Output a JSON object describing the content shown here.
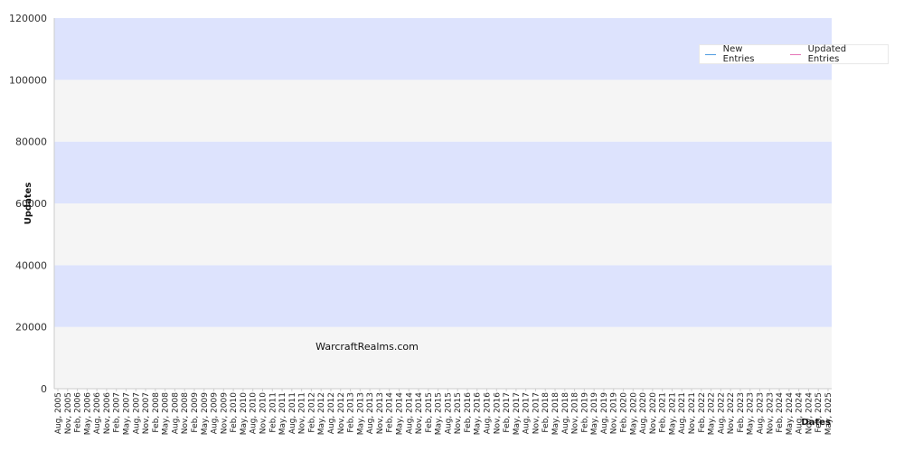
{
  "chart_data": {
    "type": "line",
    "title": "",
    "xlabel": "Dates",
    "ylabel": "Updates",
    "ylim": [
      0,
      120000
    ],
    "yticks": [
      0,
      20000,
      40000,
      60000,
      80000,
      100000,
      120000
    ],
    "grid": "horizontal alternating bands",
    "legend_position": "top-right",
    "watermark": "WarcraftRealms.com",
    "x_categories": [
      "Aug, 2005",
      "Nov, 2005",
      "Feb, 2006",
      "May, 2006",
      "Aug, 2006",
      "Nov, 2006",
      "Feb, 2007",
      "May, 2007",
      "Aug, 2007",
      "Nov, 2007",
      "Feb, 2008",
      "May, 2008",
      "Aug, 2008",
      "Nov, 2008",
      "Feb, 2009",
      "May, 2009",
      "Aug, 2009",
      "Nov, 2009",
      "Feb, 2010",
      "May, 2010",
      "Aug, 2010",
      "Nov, 2010",
      "Feb, 2011",
      "May, 2011",
      "Aug, 2011",
      "Nov, 2011",
      "Feb, 2012",
      "May, 2012",
      "Aug, 2012",
      "Nov, 2012",
      "Feb, 2013",
      "May, 2013",
      "Aug, 2013",
      "Nov, 2013",
      "Feb, 2014",
      "May, 2014",
      "Aug, 2014",
      "Nov, 2014",
      "Feb, 2015",
      "May, 2015",
      "Aug, 2015",
      "Nov, 2015",
      "Feb, 2016",
      "May, 2016",
      "Aug, 2016",
      "Nov, 2016",
      "Feb, 2017",
      "May, 2017",
      "Aug, 2017",
      "Nov, 2017",
      "Feb, 2018",
      "May, 2018",
      "Aug, 2018",
      "Nov, 2018",
      "Feb, 2019",
      "May, 2019",
      "Aug, 2019",
      "Nov, 2019",
      "Feb, 2020",
      "May, 2020",
      "Aug, 2020",
      "Nov, 2020",
      "Feb, 2021",
      "May, 2021",
      "Aug, 2021",
      "Nov, 2021",
      "Feb, 2022",
      "May, 2022",
      "Aug, 2022",
      "Nov, 2022",
      "Feb, 2023",
      "May, 2023",
      "Aug, 2023",
      "Nov, 2023",
      "Feb, 2024",
      "May, 2024",
      "Aug, 2024",
      "Nov, 2024",
      "Feb, 2025",
      "May, 2025"
    ],
    "series": [
      {
        "name": "New Entries",
        "color": "#4f9be0",
        "values": []
      },
      {
        "name": "Updated Entries",
        "color": "#e673b6",
        "values": []
      }
    ]
  }
}
